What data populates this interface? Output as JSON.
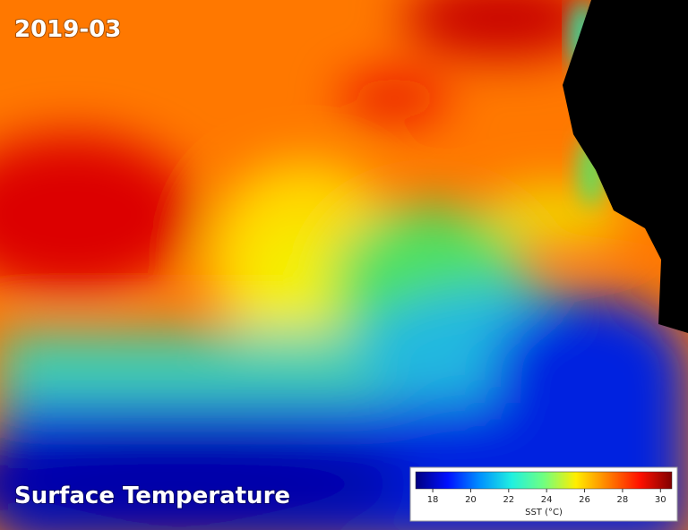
{
  "date": "2019-03",
  "title": "Surface Temperature",
  "colorbar": {
    "label": "SST (°C)",
    "range": [
      17.1,
      30.6
    ],
    "ticks": [
      18,
      20,
      22,
      24,
      26,
      28,
      30
    ],
    "colors": [
      "#00007f",
      "#0010ff",
      "#0090ff",
      "#20f0e0",
      "#70ff80",
      "#ffee00",
      "#ff8000",
      "#ff1000",
      "#800000"
    ]
  }
}
